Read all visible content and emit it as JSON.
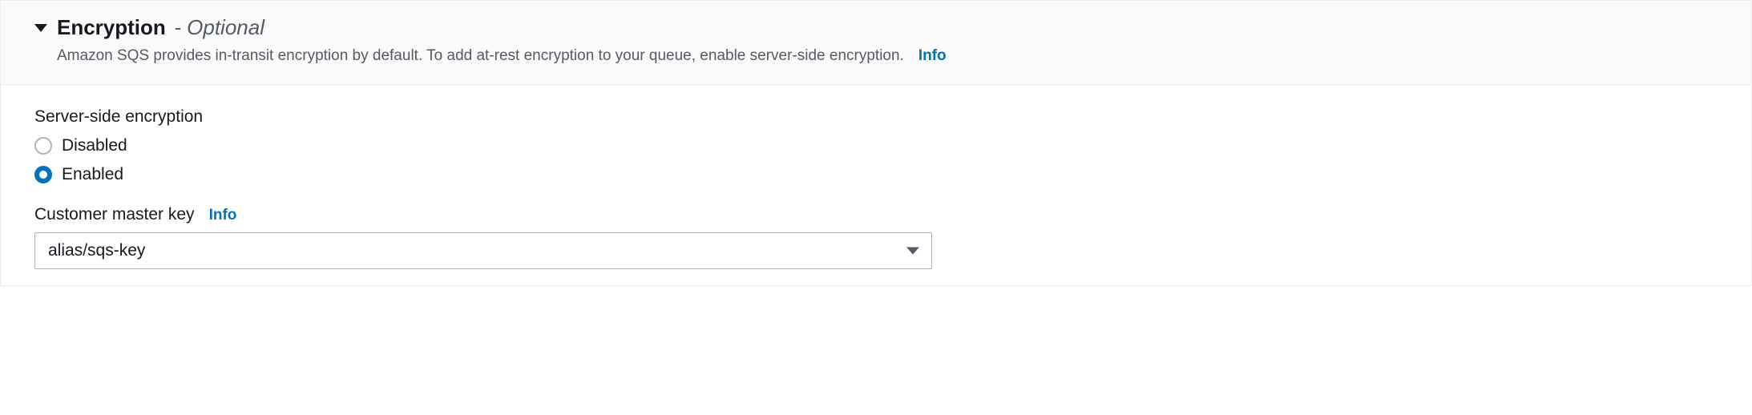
{
  "panel": {
    "title": "Encryption",
    "title_suffix": "- Optional",
    "description": "Amazon SQS provides in-transit encryption by default. To add at-rest encryption to your queue, enable server-side encryption.",
    "info_label": "Info"
  },
  "sse": {
    "label": "Server-side encryption",
    "options": {
      "disabled": "Disabled",
      "enabled": "Enabled"
    },
    "selected": "enabled"
  },
  "cmk": {
    "label": "Customer master key",
    "info_label": "Info",
    "value": "alias/sqs-key"
  },
  "colors": {
    "text_primary": "#16191f",
    "text_secondary": "#545b64",
    "link": "#0073bb",
    "accent": "#0073bb",
    "border": "#aab7b8",
    "header_bg": "#fafafa",
    "body_bg": "#ffffff",
    "panel_border": "#eaeded"
  }
}
